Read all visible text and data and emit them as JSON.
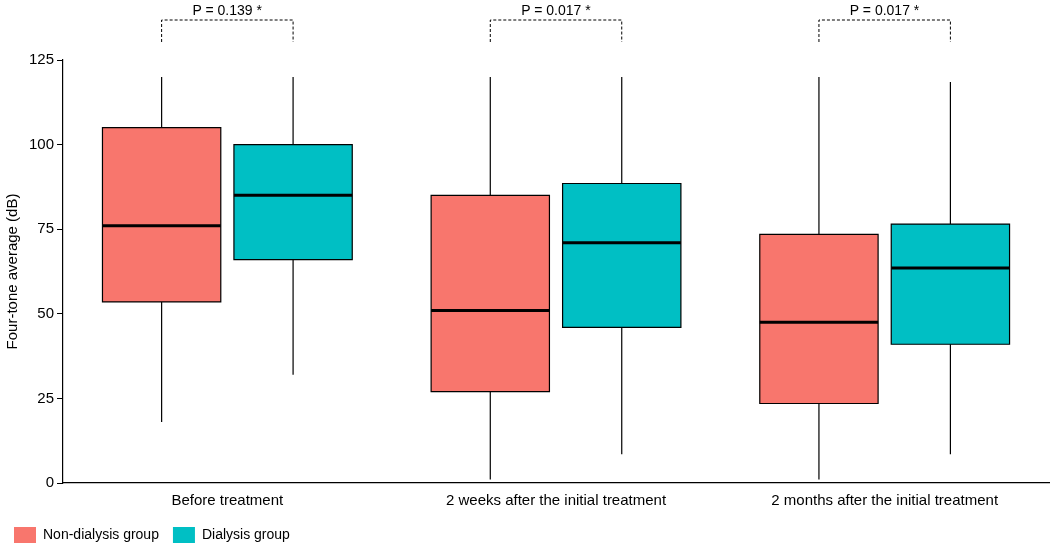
{
  "chart_data": {
    "type": "box",
    "ylabel": "Four-tone average (dB)",
    "categories": [
      "Before treatment",
      "2 weeks after the initial treatment",
      "2 months after the initial treatment"
    ],
    "series": [
      {
        "name": "Non-dialysis group",
        "color": "#f8766d",
        "boxes": [
          {
            "low": 18,
            "q1": 53.5,
            "median": 76,
            "q3": 105,
            "high": 120
          },
          {
            "low": 1,
            "q1": 27,
            "median": 51,
            "q3": 85,
            "high": 120
          },
          {
            "low": 1,
            "q1": 23.5,
            "median": 47.5,
            "q3": 73.5,
            "high": 120
          }
        ]
      },
      {
        "name": "Dialysis group",
        "color": "#00bfc4",
        "boxes": [
          {
            "low": 32,
            "q1": 66,
            "median": 85,
            "q3": 100,
            "high": 120
          },
          {
            "low": 8.5,
            "q1": 46,
            "median": 71,
            "q3": 88.5,
            "high": 120
          },
          {
            "low": 8.5,
            "q1": 41,
            "median": 63.5,
            "q3": 76.5,
            "high": 118.5
          }
        ]
      }
    ],
    "ylim": [
      0,
      125
    ],
    "yticks": [
      0,
      25,
      50,
      75,
      100,
      125
    ],
    "grid": false,
    "legend": "bottom left",
    "annotations": [
      "P = 0.139 *",
      "P = 0.017 *",
      "P = 0.017 *"
    ]
  }
}
